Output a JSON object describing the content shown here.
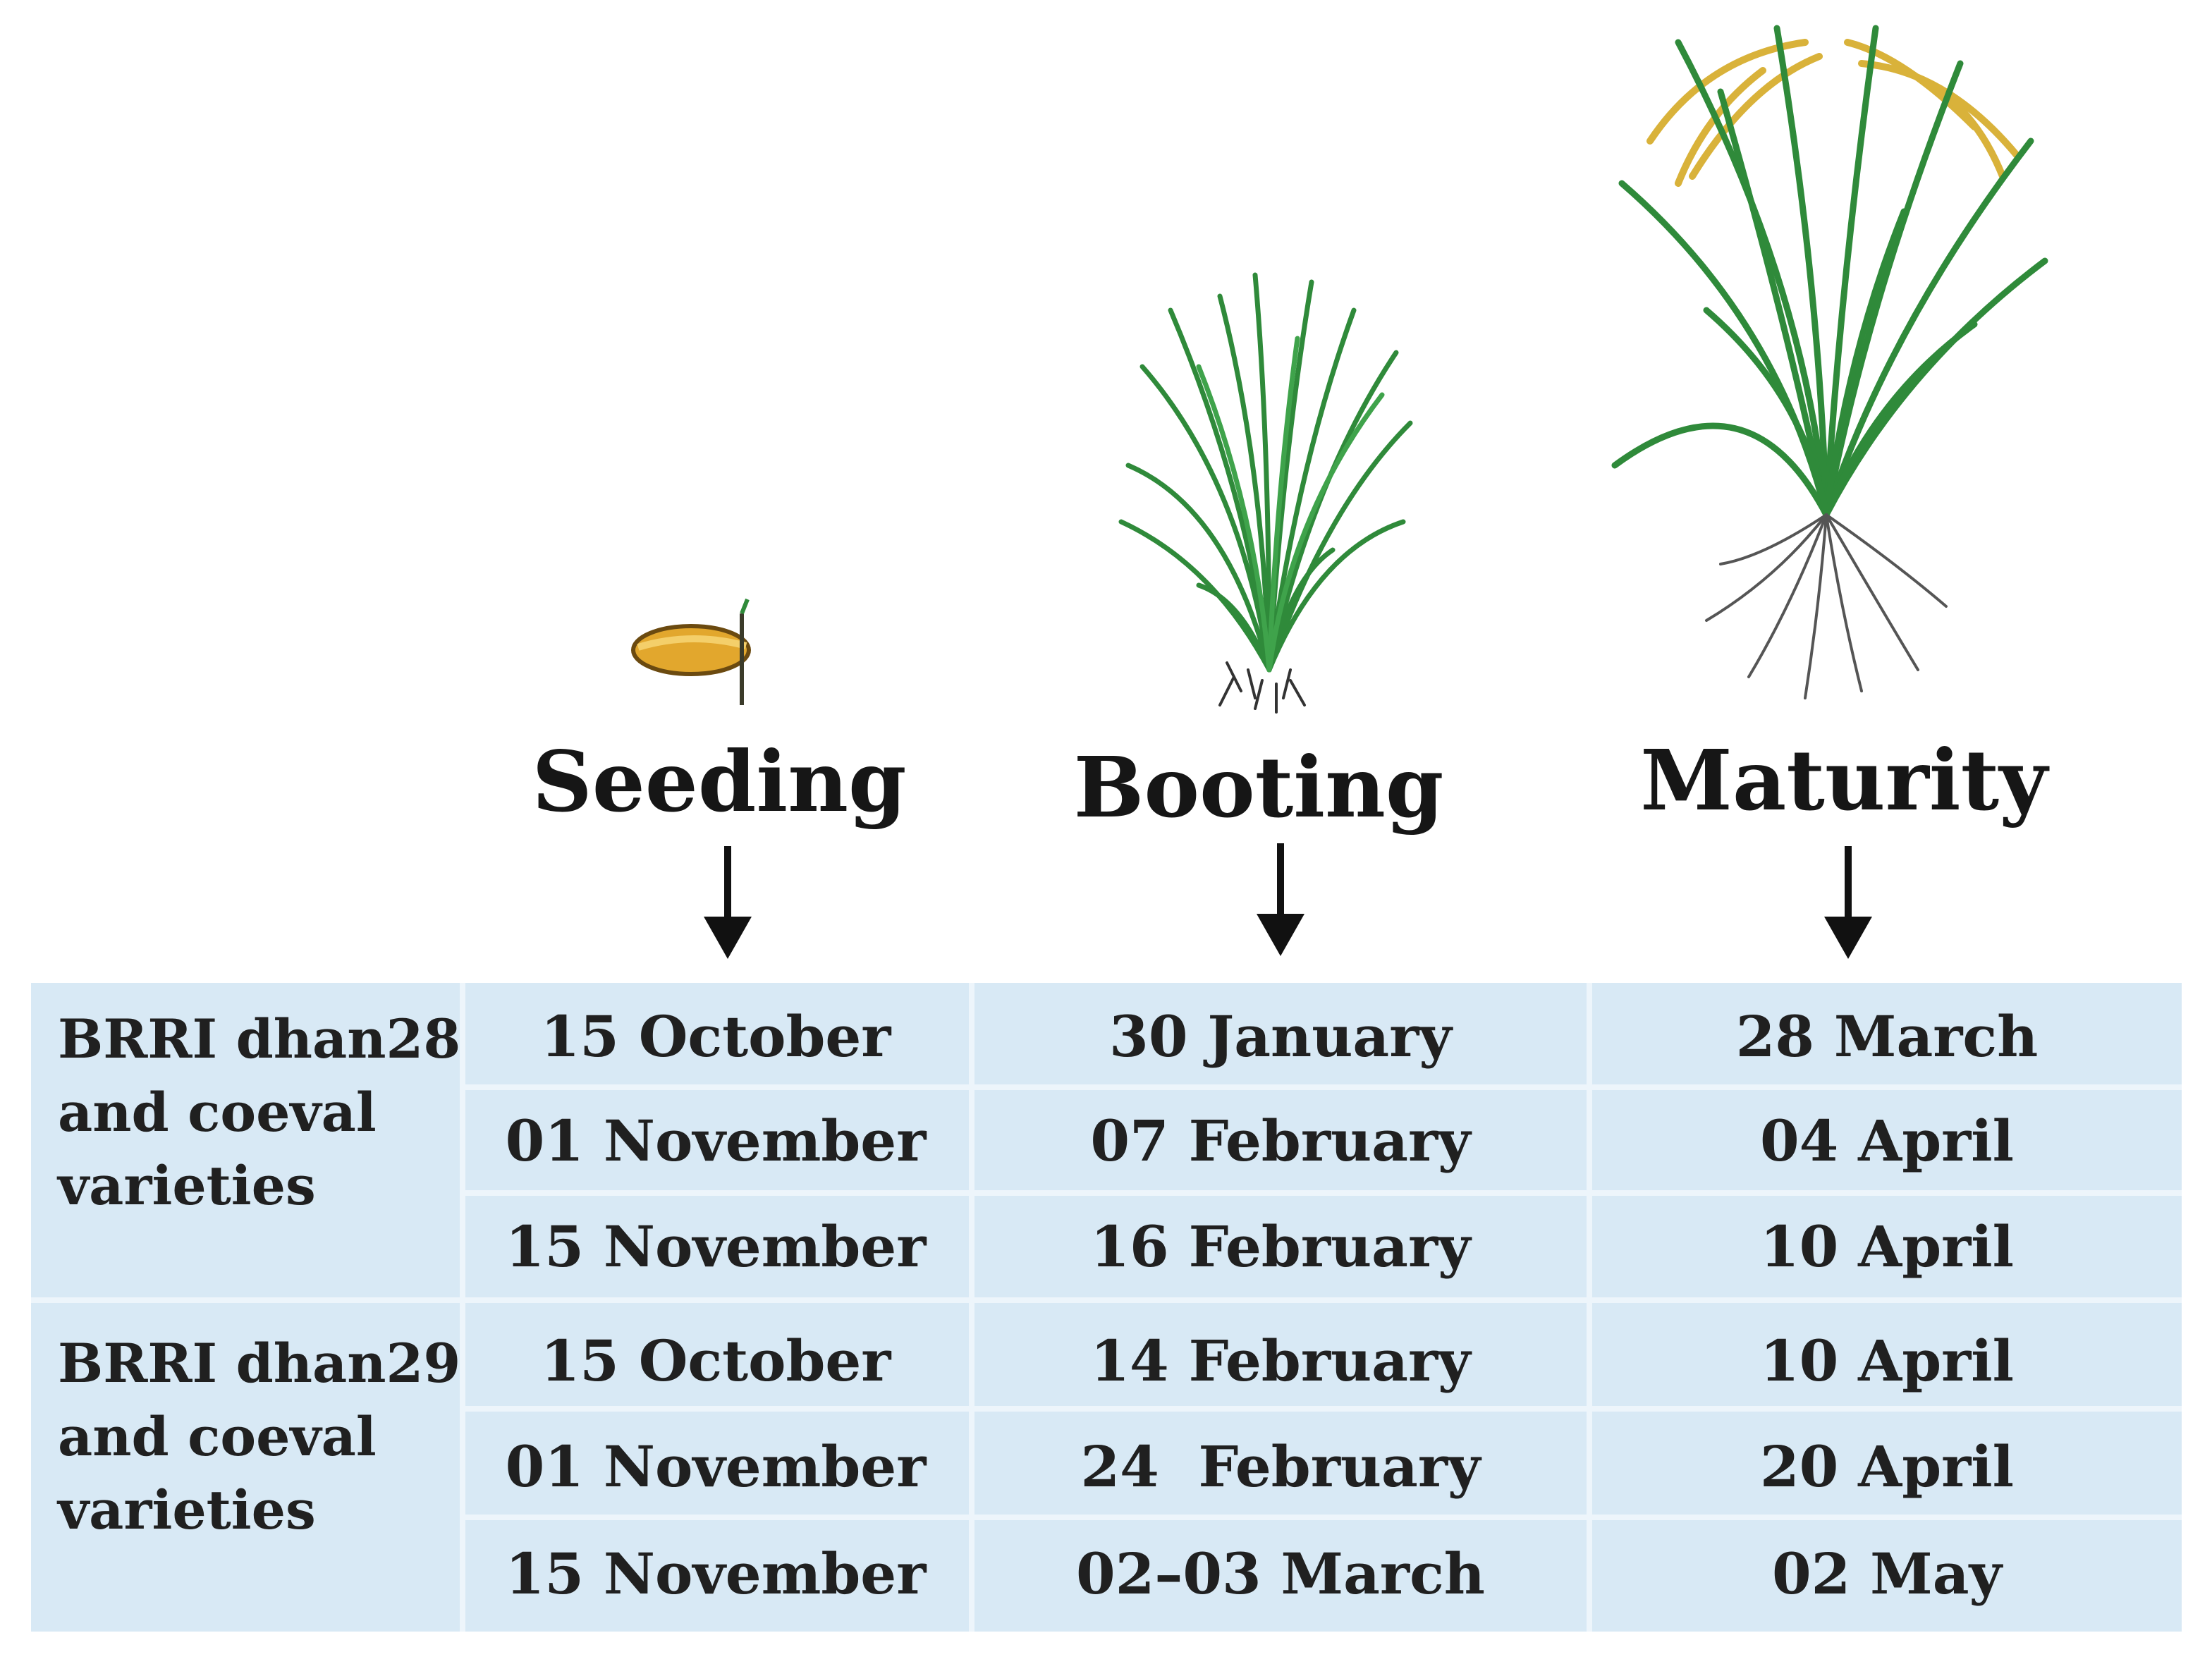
{
  "stages": [
    {
      "label": "Seeding",
      "illustration": "rice-seed-icon"
    },
    {
      "label": "Booting",
      "illustration": "rice-plant-booting-icon"
    },
    {
      "label": "Maturity",
      "illustration": "rice-plant-mature-icon"
    }
  ],
  "groups": [
    {
      "label_lines": [
        "BRRI dhan28",
        "and coeval",
        "varieties"
      ],
      "rows": [
        [
          "15 October",
          "30 January",
          "28 March"
        ],
        [
          "01 November",
          "07 February",
          "04 April"
        ],
        [
          "15 November",
          "16 February",
          "10 April"
        ]
      ]
    },
    {
      "label_lines": [
        "BRRI dhan29",
        "and coeval",
        "varieties"
      ],
      "rows": [
        [
          "15 October",
          "14 February",
          "10 April"
        ],
        [
          "01 November",
          "24  February",
          "20 April"
        ],
        [
          "15 November",
          "02–03 March",
          "02 May"
        ]
      ]
    }
  ],
  "colors": {
    "table_bg": "#d8e9f5",
    "grid": "#edf5fb",
    "leaf_green": "#2f8a3a",
    "grain_gold": "#d9b23a",
    "text": "#202020"
  }
}
